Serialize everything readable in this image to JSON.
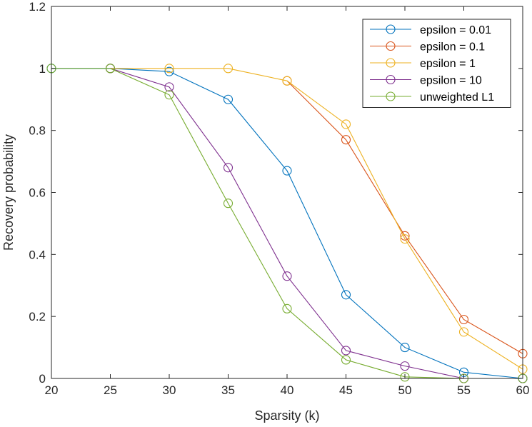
{
  "chart_data": {
    "type": "line",
    "title": "",
    "xlabel": "Sparsity (k)",
    "ylabel": "Recovery probability",
    "xlim": [
      20,
      60
    ],
    "ylim": [
      0,
      1.2
    ],
    "xticks": [
      "20",
      "25",
      "30",
      "35",
      "40",
      "45",
      "50",
      "55",
      "60"
    ],
    "yticks": [
      "0",
      "0.2",
      "0.4",
      "0.6",
      "0.8",
      "1",
      "1.2"
    ],
    "grid": false,
    "legend_position": "top-right",
    "marker": "circle",
    "series": [
      {
        "name": "epsilon = 0.01",
        "color": "#0072BD",
        "x": [
          20,
          25,
          30,
          35,
          40,
          45,
          50,
          55,
          60
        ],
        "y": [
          1,
          1,
          0.99,
          0.9,
          0.67,
          0.27,
          0.1,
          0.02,
          0
        ]
      },
      {
        "name": "epsilon = 0.1",
        "color": "#D95319",
        "x": [
          40,
          45,
          50,
          55,
          60
        ],
        "y": [
          0.96,
          0.77,
          0.46,
          0.19,
          0.08
        ]
      },
      {
        "name": "epsilon = 1",
        "color": "#EDB120",
        "x": [
          25,
          30,
          35,
          40,
          45,
          50,
          55,
          60
        ],
        "y": [
          1,
          1,
          1,
          0.96,
          0.82,
          0.45,
          0.15,
          0.03
        ]
      },
      {
        "name": "epsilon = 10",
        "color": "#7E2F8E",
        "x": [
          25,
          30,
          35,
          40,
          45,
          50,
          55,
          60
        ],
        "y": [
          1,
          0.94,
          0.68,
          0.33,
          0.09,
          0.04,
          0,
          0
        ]
      },
      {
        "name": "unweighted L1",
        "color": "#77AC30",
        "x": [
          20,
          25,
          30,
          35,
          40,
          45,
          50,
          55,
          60
        ],
        "y": [
          1,
          1,
          0.915,
          0.565,
          0.225,
          0.06,
          0.005,
          0,
          0
        ]
      }
    ]
  }
}
